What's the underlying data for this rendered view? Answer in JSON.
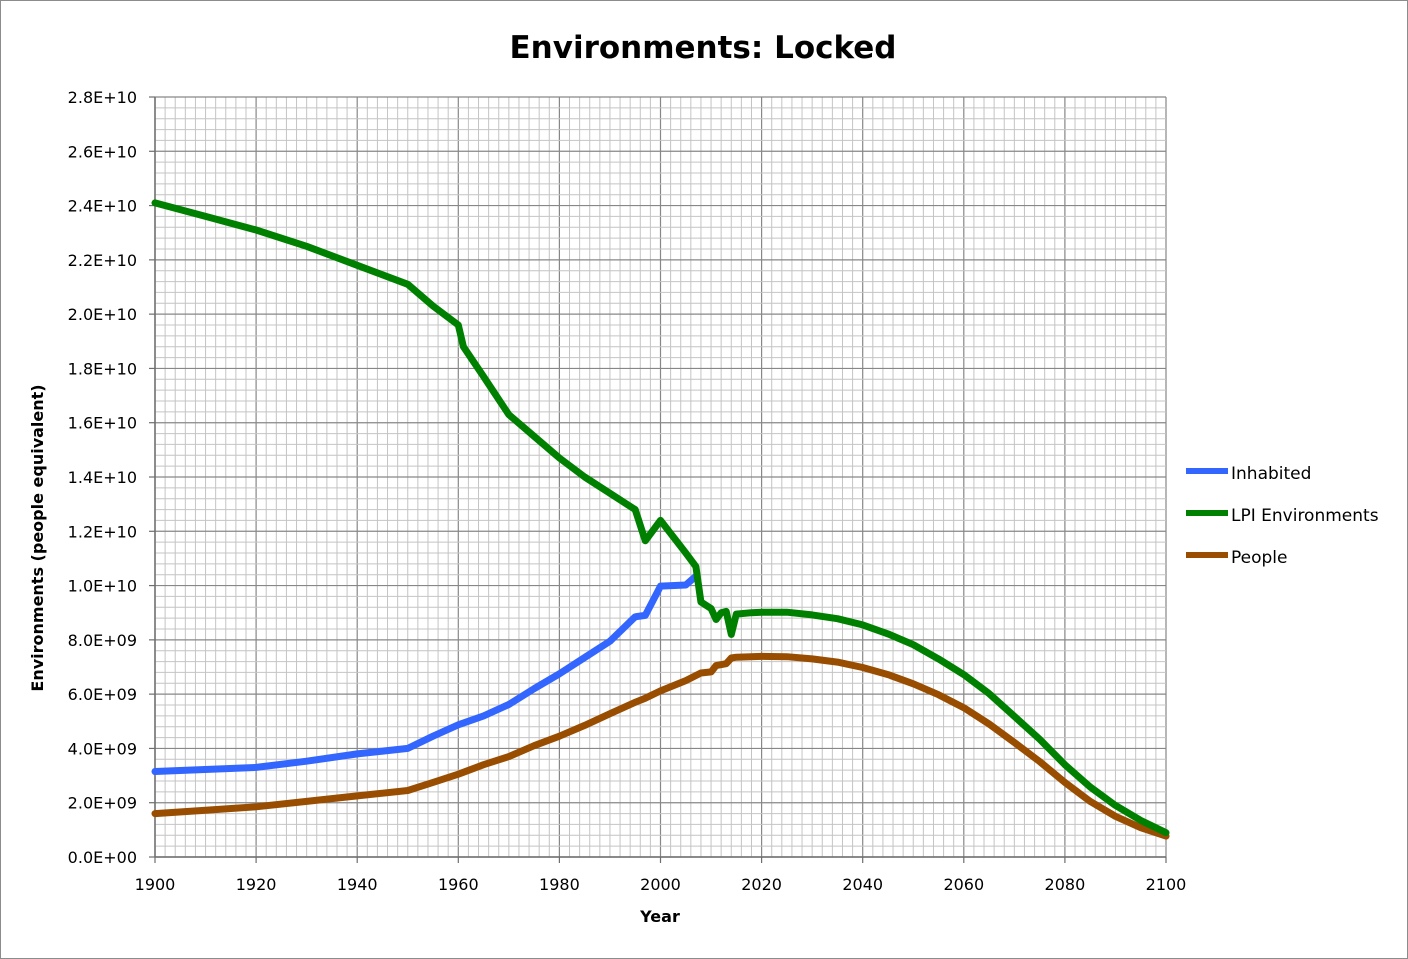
{
  "chart_data": {
    "type": "line",
    "title": "Environments: Locked",
    "xlabel": "Year",
    "ylabel": "Environments (people equivalent)",
    "xlim": [
      1900,
      2100
    ],
    "ylim": [
      0,
      28000000000
    ],
    "x_ticks": [
      1900,
      1920,
      1940,
      1960,
      1980,
      2000,
      2020,
      2040,
      2060,
      2080,
      2100
    ],
    "x_tick_labels": [
      "1900",
      "1920",
      "1940",
      "1960",
      "1980",
      "2000",
      "2020",
      "2040",
      "2060",
      "2080",
      "2100"
    ],
    "y_ticks": [
      0,
      2000000000,
      4000000000,
      6000000000,
      8000000000,
      10000000000,
      12000000000,
      14000000000,
      16000000000,
      18000000000,
      20000000000,
      22000000000,
      24000000000,
      26000000000,
      28000000000
    ],
    "y_tick_labels": [
      "0.0E+00",
      "2.0E+09",
      "4.0E+09",
      "6.0E+09",
      "8.0E+09",
      "1.0E+10",
      "1.2E+10",
      "1.4E+10",
      "1.6E+10",
      "1.8E+10",
      "2.0E+10",
      "2.2E+10",
      "2.4E+10",
      "2.6E+10",
      "2.8E+10"
    ],
    "grid": true,
    "legend_position": "right",
    "series": [
      {
        "name": "Inhabited",
        "color": "#3366ff",
        "points": [
          [
            1900,
            3150000000
          ],
          [
            1920,
            3300000000
          ],
          [
            1930,
            3530000000
          ],
          [
            1940,
            3800000000
          ],
          [
            1950,
            4000000000
          ],
          [
            1955,
            4450000000
          ],
          [
            1960,
            4870000000
          ],
          [
            1965,
            5200000000
          ],
          [
            1970,
            5620000000
          ],
          [
            1975,
            6200000000
          ],
          [
            1980,
            6750000000
          ],
          [
            1985,
            7350000000
          ],
          [
            1990,
            7950000000
          ],
          [
            1995,
            8850000000
          ],
          [
            1997,
            8900000000
          ],
          [
            2000,
            9980000000
          ],
          [
            2005,
            10020000000
          ],
          [
            2007,
            10350000000
          ]
        ]
      },
      {
        "name": "LPI Environments",
        "color": "#008000",
        "points": [
          [
            1900,
            24100000000
          ],
          [
            1910,
            23600000000
          ],
          [
            1920,
            23100000000
          ],
          [
            1930,
            22500000000
          ],
          [
            1940,
            21800000000
          ],
          [
            1950,
            21100000000
          ],
          [
            1955,
            20300000000
          ],
          [
            1960,
            19600000000
          ],
          [
            1961,
            18800000000
          ],
          [
            1965,
            17700000000
          ],
          [
            1970,
            16300000000
          ],
          [
            1975,
            15500000000
          ],
          [
            1980,
            14700000000
          ],
          [
            1985,
            14000000000
          ],
          [
            1990,
            13400000000
          ],
          [
            1995,
            12800000000
          ],
          [
            1997,
            11650000000
          ],
          [
            2000,
            12400000000
          ],
          [
            2005,
            11200000000
          ],
          [
            2007,
            10700000000
          ],
          [
            2008,
            9400000000
          ],
          [
            2010,
            9150000000
          ],
          [
            2011,
            8750000000
          ],
          [
            2012,
            9000000000
          ],
          [
            2013,
            9050000000
          ],
          [
            2014,
            8200000000
          ],
          [
            2015,
            8950000000
          ],
          [
            2018,
            9000000000
          ],
          [
            2020,
            9020000000
          ],
          [
            2025,
            9020000000
          ],
          [
            2030,
            8920000000
          ],
          [
            2035,
            8780000000
          ],
          [
            2040,
            8550000000
          ],
          [
            2045,
            8220000000
          ],
          [
            2050,
            7820000000
          ],
          [
            2055,
            7300000000
          ],
          [
            2060,
            6720000000
          ],
          [
            2065,
            6020000000
          ],
          [
            2070,
            5180000000
          ],
          [
            2075,
            4340000000
          ],
          [
            2080,
            3400000000
          ],
          [
            2085,
            2580000000
          ],
          [
            2090,
            1900000000
          ],
          [
            2095,
            1350000000
          ],
          [
            2100,
            900000000
          ]
        ]
      },
      {
        "name": "People",
        "color": "#994d00",
        "points": [
          [
            1900,
            1600000000
          ],
          [
            1910,
            1720000000
          ],
          [
            1920,
            1850000000
          ],
          [
            1930,
            2050000000
          ],
          [
            1940,
            2250000000
          ],
          [
            1950,
            2450000000
          ],
          [
            1955,
            2750000000
          ],
          [
            1960,
            3050000000
          ],
          [
            1965,
            3400000000
          ],
          [
            1970,
            3700000000
          ],
          [
            1975,
            4100000000
          ],
          [
            1980,
            4450000000
          ],
          [
            1985,
            4850000000
          ],
          [
            1990,
            5280000000
          ],
          [
            1995,
            5700000000
          ],
          [
            1997,
            5850000000
          ],
          [
            2000,
            6120000000
          ],
          [
            2005,
            6500000000
          ],
          [
            2008,
            6780000000
          ],
          [
            2010,
            6820000000
          ],
          [
            2011,
            7050000000
          ],
          [
            2013,
            7120000000
          ],
          [
            2014,
            7330000000
          ],
          [
            2015,
            7360000000
          ],
          [
            2020,
            7390000000
          ],
          [
            2025,
            7380000000
          ],
          [
            2030,
            7300000000
          ],
          [
            2035,
            7180000000
          ],
          [
            2040,
            6980000000
          ],
          [
            2045,
            6720000000
          ],
          [
            2050,
            6380000000
          ],
          [
            2055,
            5980000000
          ],
          [
            2060,
            5500000000
          ],
          [
            2065,
            4900000000
          ],
          [
            2070,
            4220000000
          ],
          [
            2075,
            3520000000
          ],
          [
            2080,
            2750000000
          ],
          [
            2085,
            2050000000
          ],
          [
            2090,
            1500000000
          ],
          [
            2095,
            1080000000
          ],
          [
            2100,
            770000000
          ]
        ]
      }
    ]
  }
}
